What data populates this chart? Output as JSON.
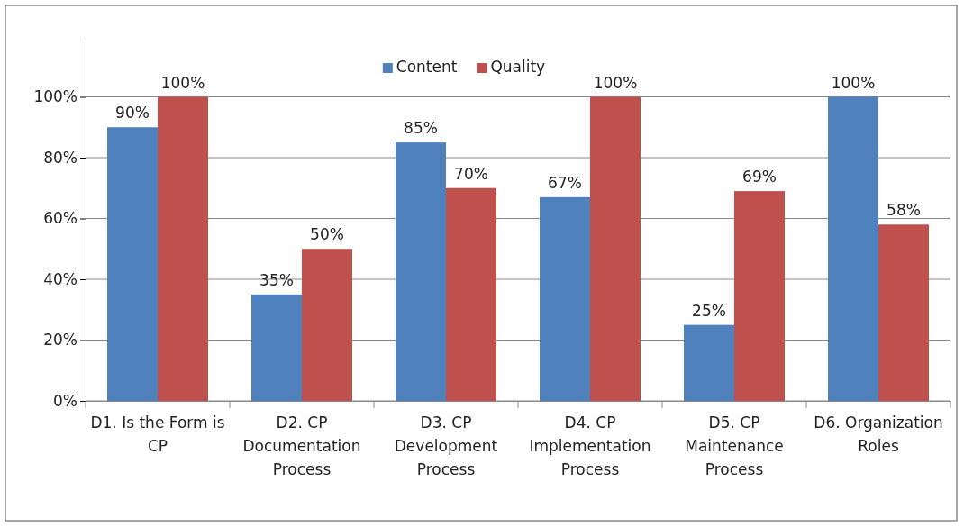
{
  "chart_data": {
    "type": "bar",
    "categories": [
      "D1. Is the Form is CP",
      "D2. CP Documentation Process",
      "D3. CP Development Process",
      "D4. CP Implementation Process",
      "D5. CP Maintenance Process",
      "D6. Organization Roles"
    ],
    "series": [
      {
        "name": "Content",
        "color": "#4f81bd",
        "values": [
          90,
          35,
          85,
          67,
          25,
          100
        ],
        "value_labels": [
          "90%",
          "35%",
          "85%",
          "67%",
          "25%",
          "100%"
        ]
      },
      {
        "name": "Quality",
        "color": "#c0504d",
        "values": [
          100,
          50,
          70,
          100,
          69,
          58
        ],
        "value_labels": [
          "100%",
          "50%",
          "70%",
          "100%",
          "69%",
          "58%"
        ]
      }
    ],
    "ylim": [
      0,
      120
    ],
    "yticks": [
      {
        "value": 0,
        "label": "0%"
      },
      {
        "value": 20,
        "label": "20%"
      },
      {
        "value": 40,
        "label": "40%"
      },
      {
        "value": 60,
        "label": "60%"
      },
      {
        "value": 80,
        "label": "80%"
      },
      {
        "value": 100,
        "label": "100%"
      }
    ],
    "grid": "y",
    "legend": "top"
  }
}
